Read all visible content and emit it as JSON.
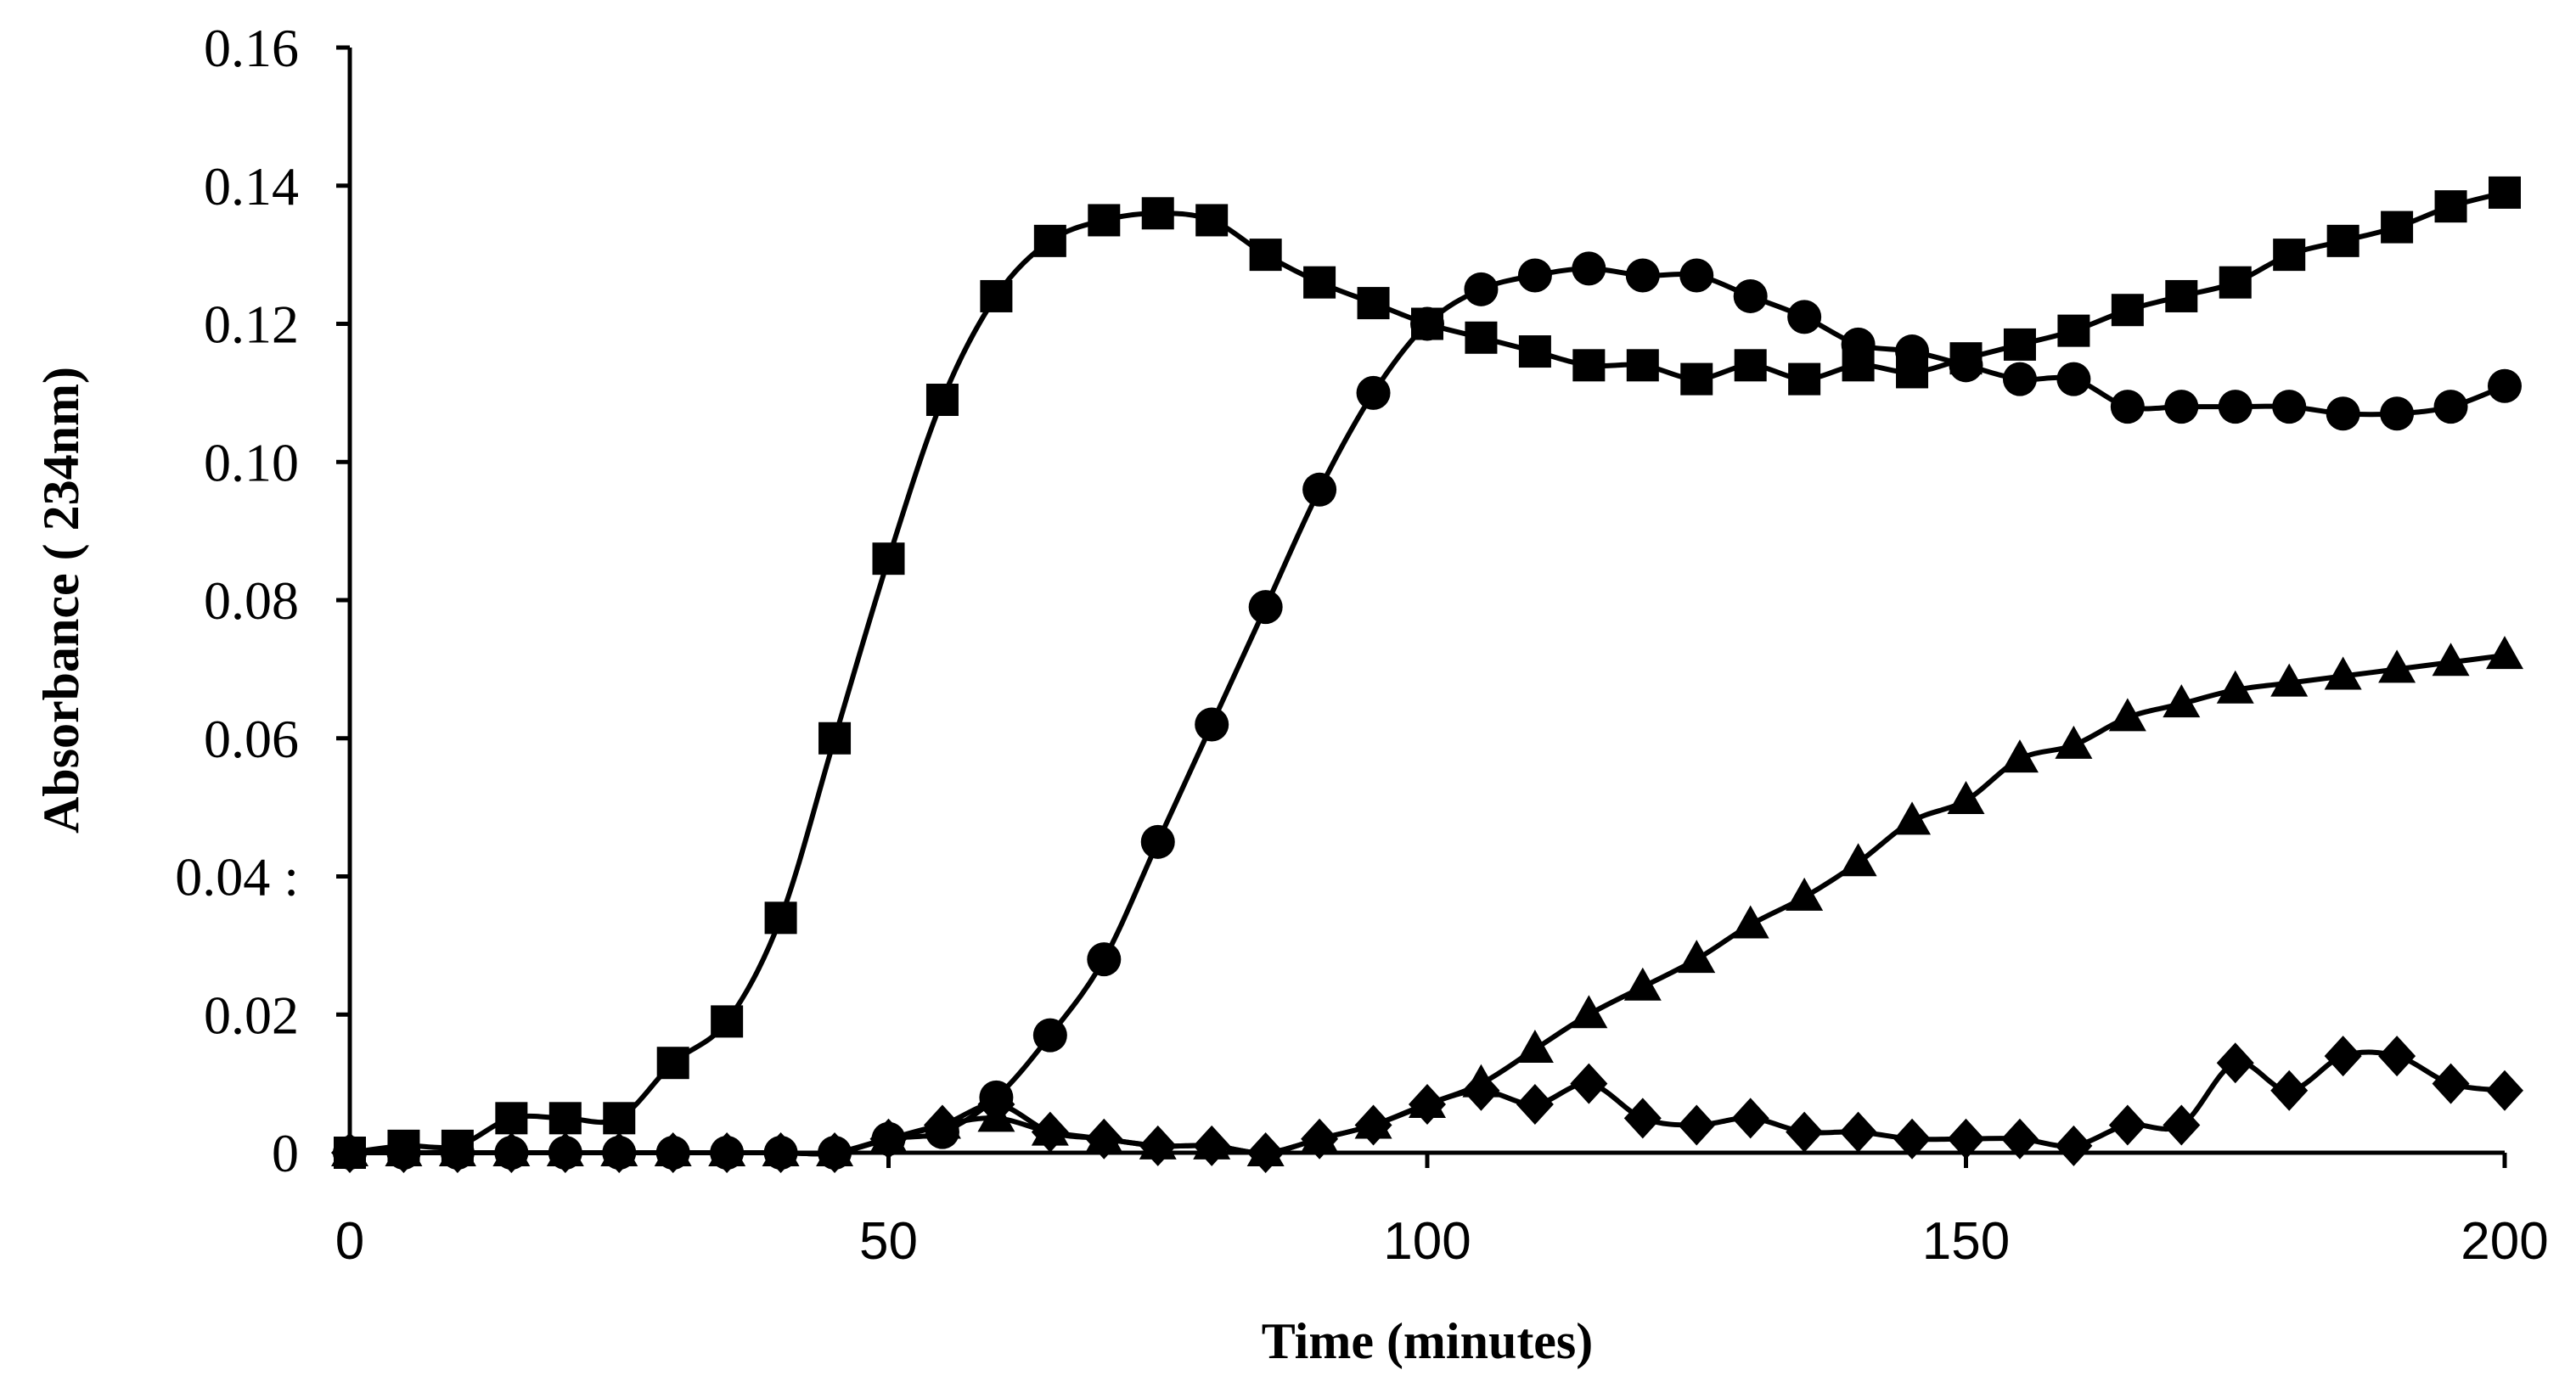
{
  "chart_data": {
    "type": "line",
    "xlabel": "Time (minutes)",
    "ylabel": "Absorbance ( 234nm)",
    "xlim": [
      0,
      200
    ],
    "ylim": [
      0,
      0.16
    ],
    "x_ticks": [
      0,
      50,
      100,
      150,
      200
    ],
    "x_tick_labels": [
      "0",
      "50",
      "100",
      "150",
      "200"
    ],
    "y_ticks": [
      0,
      0.02,
      0.04,
      0.06,
      0.08,
      0.1,
      0.12,
      0.14,
      0.16
    ],
    "y_tick_labels": [
      "0",
      "0.02",
      "0.04 :",
      "0.06",
      "0.08",
      "0.10",
      "0.12",
      "0.14",
      "0.16"
    ],
    "grid": false,
    "legend": "none",
    "x": [
      0,
      5,
      10,
      15,
      20,
      25,
      30,
      35,
      40,
      45,
      50,
      55,
      60,
      65,
      70,
      75,
      80,
      85,
      90,
      95,
      100,
      105,
      110,
      115,
      120,
      125,
      130,
      135,
      140,
      145,
      150,
      155,
      160,
      165,
      170,
      175,
      180,
      185,
      190,
      195,
      200
    ],
    "series": [
      {
        "marker": "square",
        "values": [
          0,
          0.001,
          0.001,
          0.005,
          0.005,
          0.005,
          0.013,
          0.019,
          0.034,
          0.06,
          0.086,
          0.109,
          0.124,
          0.132,
          0.135,
          0.136,
          0.135,
          0.13,
          0.126,
          0.123,
          0.12,
          0.118,
          0.116,
          0.114,
          0.114,
          0.112,
          0.114,
          0.112,
          0.114,
          0.113,
          0.115,
          0.117,
          0.119,
          0.122,
          0.124,
          0.126,
          0.13,
          0.132,
          0.134,
          0.137,
          0.139
        ]
      },
      {
        "marker": "circle",
        "values": [
          0,
          0,
          0,
          0,
          0,
          0,
          0,
          0,
          0,
          0,
          0.002,
          0.003,
          0.008,
          0.017,
          0.028,
          0.045,
          0.062,
          0.079,
          0.096,
          0.11,
          0.12,
          0.125,
          0.127,
          0.128,
          0.127,
          0.127,
          0.124,
          0.121,
          0.117,
          0.116,
          0.114,
          0.112,
          0.112,
          0.108,
          0.108,
          0.108,
          0.108,
          0.107,
          0.107,
          0.108,
          0.111
        ]
      },
      {
        "marker": "triangle",
        "values": [
          0,
          0,
          0,
          0,
          0,
          0,
          0,
          0,
          0,
          0,
          0.002,
          0.004,
          0.005,
          0.003,
          0.002,
          0.001,
          0.001,
          0.0,
          0.002,
          0.004,
          0.007,
          0.01,
          0.015,
          0.02,
          0.024,
          0.028,
          0.033,
          0.037,
          0.042,
          0.048,
          0.051,
          0.057,
          0.059,
          0.063,
          0.065,
          0.067,
          0.068,
          0.069,
          0.07,
          0.071,
          0.072
        ]
      },
      {
        "marker": "diamond",
        "values": [
          0,
          0,
          0,
          0,
          0,
          0,
          0,
          0,
          0,
          0,
          0.002,
          0.004,
          0.007,
          0.003,
          0.002,
          0.001,
          0.001,
          0.0,
          0.002,
          0.004,
          0.007,
          0.009,
          0.007,
          0.01,
          0.005,
          0.004,
          0.005,
          0.003,
          0.003,
          0.002,
          0.002,
          0.002,
          0.001,
          0.004,
          0.004,
          0.013,
          0.009,
          0.014,
          0.014,
          0.01,
          0.009
        ]
      }
    ]
  }
}
